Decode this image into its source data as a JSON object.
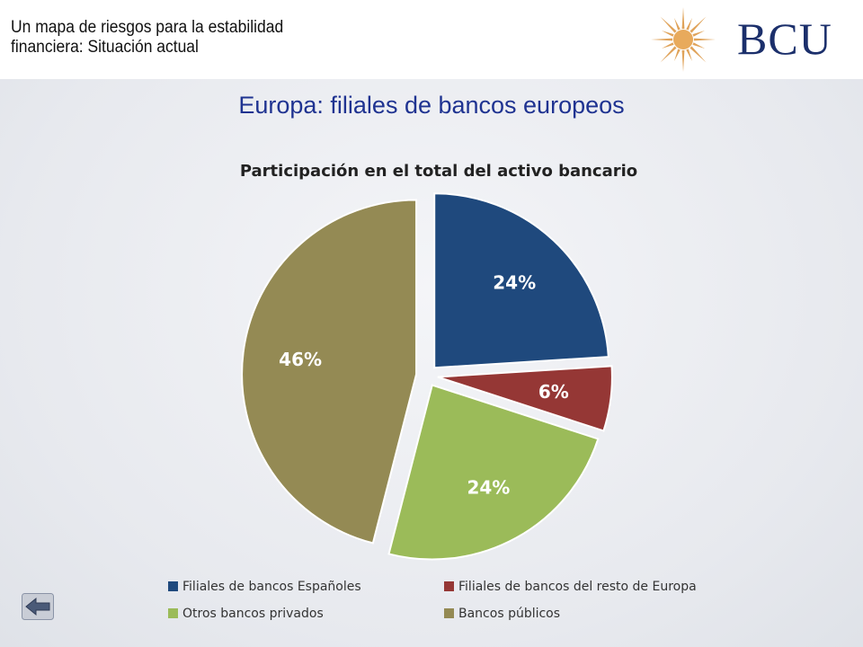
{
  "header": {
    "title": "Un mapa de riesgos para la estabilidad financiera: Situación actual",
    "logo_text": "BCU"
  },
  "slide": {
    "title": "Europa: filiales de bancos europeos"
  },
  "chart_data": {
    "type": "pie",
    "title": "Participación en el total del activo bancario",
    "categories": [
      "Filiales de bancos Españoles",
      "Filiales de bancos del resto de Europa",
      "Otros bancos privados",
      "Bancos públicos"
    ],
    "values": [
      24,
      6,
      24,
      46
    ],
    "labels": [
      "24%",
      "6%",
      "24%",
      "46%"
    ],
    "colors": [
      "#1f497d",
      "#953735",
      "#9bbb59",
      "#948a54"
    ],
    "exploded": true,
    "legend_position": "bottom"
  },
  "icons": {
    "logo": "sun-emblem-icon",
    "nav": "back-arrow-icon"
  }
}
